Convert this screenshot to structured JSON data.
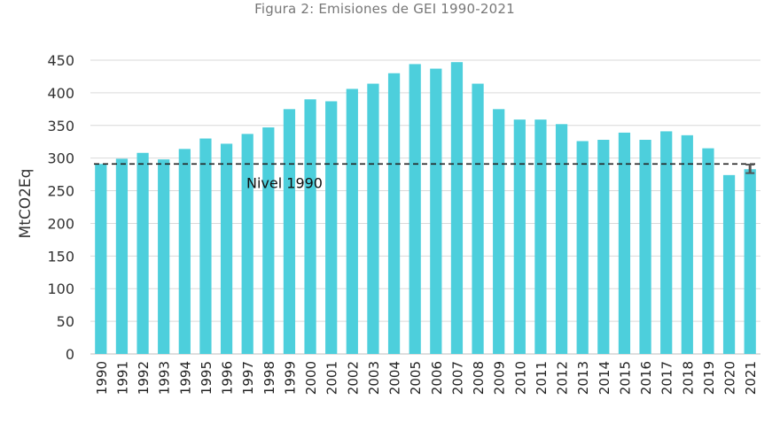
{
  "chart_data": {
    "type": "bar",
    "title": "Figura 2: Emisiones de GEI 1990-2021",
    "xlabel": "",
    "ylabel": "MtCO2Eq",
    "ylim": [
      0,
      450
    ],
    "yticks": [
      0,
      50,
      100,
      150,
      200,
      250,
      300,
      350,
      400,
      450
    ],
    "grid": true,
    "categories": [
      "1990",
      "1991",
      "1992",
      "1993",
      "1994",
      "1995",
      "1996",
      "1997",
      "1998",
      "1999",
      "2000",
      "2001",
      "2002",
      "2003",
      "2004",
      "2005",
      "2006",
      "2007",
      "2008",
      "2009",
      "2010",
      "2011",
      "2012",
      "2013",
      "2014",
      "2015",
      "2016",
      "2017",
      "2018",
      "2019",
      "2020",
      "2021"
    ],
    "values": [
      291,
      299,
      308,
      298,
      314,
      330,
      322,
      337,
      347,
      375,
      390,
      387,
      406,
      414,
      430,
      444,
      437,
      447,
      414,
      375,
      359,
      359,
      352,
      326,
      328,
      339,
      328,
      341,
      335,
      315,
      274,
      283
    ],
    "bar_color": "#4dcfdc",
    "reference_line": {
      "label": "Nivel 1990",
      "value": 291,
      "style": "dashed",
      "color": "#222222"
    },
    "error_bar": {
      "category": "2021",
      "low": 277,
      "high": 290,
      "color": "#555555"
    }
  }
}
